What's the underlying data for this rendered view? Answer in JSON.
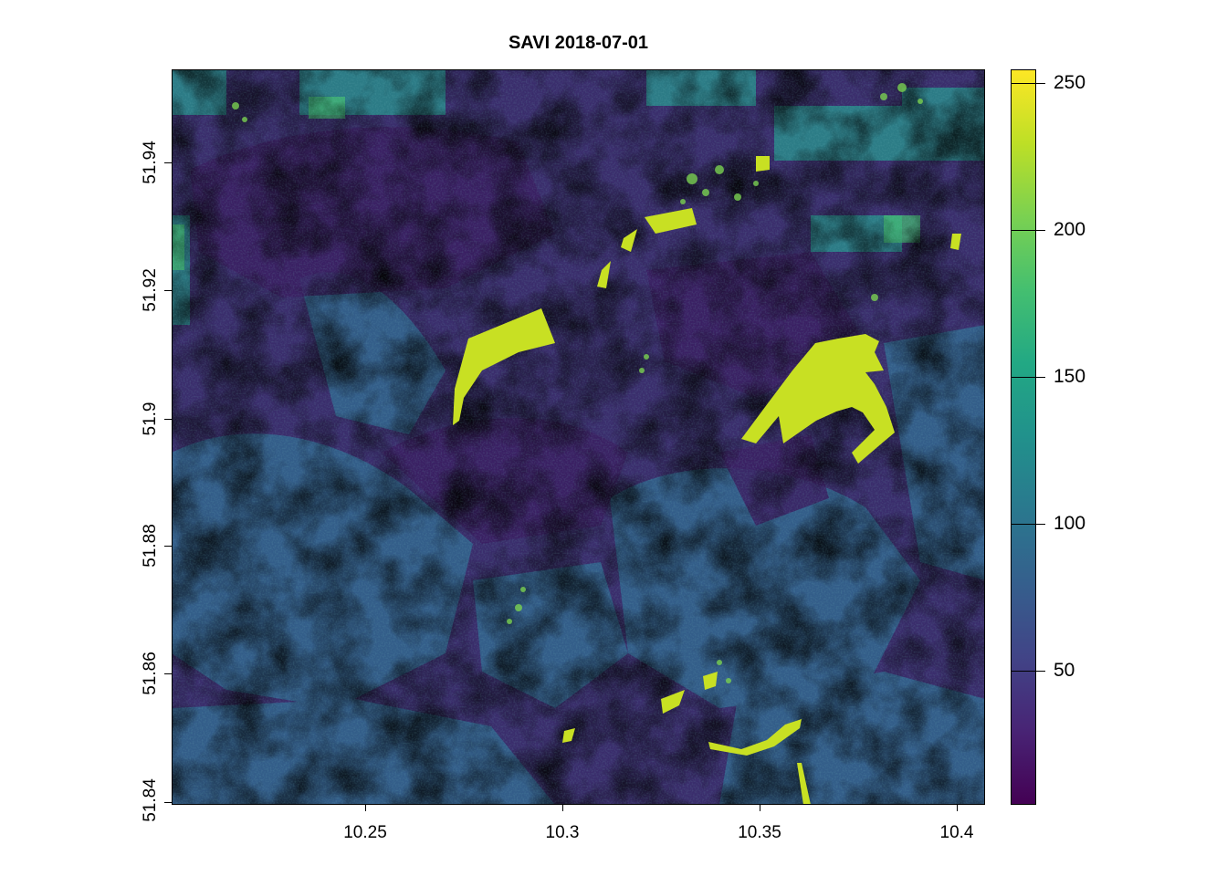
{
  "title": "SAVI 2018-07-01",
  "x_axis": {
    "ticks": [
      "10.25",
      "10.3",
      "10.35",
      "10.4"
    ]
  },
  "y_axis": {
    "ticks": [
      "51.84",
      "51.86",
      "51.88",
      "51.9",
      "51.92",
      "51.94"
    ]
  },
  "colorbar": {
    "palette": [
      "#440154",
      "#482475",
      "#414487",
      "#355f8d",
      "#2a788e",
      "#21918c",
      "#22a884",
      "#44bf70",
      "#7ad151",
      "#bddf26",
      "#fde725"
    ],
    "ticks": [
      "50",
      "100",
      "150",
      "200",
      "250"
    ]
  }
}
